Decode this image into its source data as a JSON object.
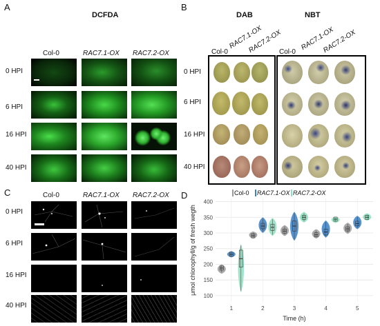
{
  "panel_a": {
    "letter": "A",
    "title": "DCFDA",
    "columns": [
      "Col-0",
      "RAC7.1-OX",
      "RAC7.2-OX"
    ],
    "rows": [
      "0 HPI",
      "6 HPI",
      "16 HPI",
      "40 HPI"
    ]
  },
  "panel_b": {
    "letter": "B",
    "dab_title": "DAB",
    "nbt_title": "NBT",
    "dab_columns": [
      "Col-0",
      "RAC7.1-OX",
      "RAC7.2-OX"
    ],
    "nbt_columns": [
      "Col-0",
      "RAC7.1-OX",
      "RAC7.2-OX"
    ],
    "rows": [
      "0 HPI",
      "6 HPI",
      "16 HPI",
      "40 HPI"
    ]
  },
  "panel_c": {
    "letter": "C",
    "columns": [
      "Col-0",
      "RAC7.1-OX",
      "RAC7.2-OX"
    ],
    "rows": [
      "0 HPI",
      "6 HPI",
      "16 HPI",
      "40 HPI"
    ]
  },
  "panel_d": {
    "letter": "D"
  },
  "colors": {
    "col0": "#9a9a9a",
    "rac71": "#3b7fc4",
    "rac72": "#8fe0c0",
    "fluor_green": "#2fd12f"
  },
  "chart_data": {
    "type": "violin",
    "legend": [
      "Col-0",
      "RAC7.1-OX",
      "RAC7.2-OX"
    ],
    "legend_placement": "top",
    "xlabel": "Time (h)",
    "ylabel": "μmol chlorophyll/g of fresh wegth",
    "categories": [
      "1",
      "2",
      "3",
      "4",
      "5"
    ],
    "ylim": [
      80,
      410
    ],
    "yticks": [
      100,
      150,
      200,
      250,
      300,
      350,
      400
    ],
    "grid": true,
    "series": [
      {
        "name": "Col-0",
        "medians": [
          188,
          291,
          306,
          294,
          313
        ],
        "ranges": [
          [
            170,
            200
          ],
          [
            282,
            305
          ],
          [
            290,
            325
          ],
          [
            282,
            312
          ],
          [
            297,
            333
          ]
        ]
      },
      {
        "name": "RAC7.1-OX",
        "medians": [
          232,
          322,
          322,
          303,
          330
        ],
        "ranges": [
          [
            222,
            242
          ],
          [
            300,
            350
          ],
          [
            275,
            368
          ],
          [
            285,
            340
          ],
          [
            312,
            355
          ]
        ]
      },
      {
        "name": "RAC7.2-OX",
        "medians": [
          218,
          318,
          350,
          344,
          350
        ],
        "ranges": [
          [
            110,
            265
          ],
          [
            290,
            348
          ],
          [
            333,
            367
          ],
          [
            332,
            352
          ],
          [
            339,
            363
          ]
        ]
      }
    ]
  }
}
